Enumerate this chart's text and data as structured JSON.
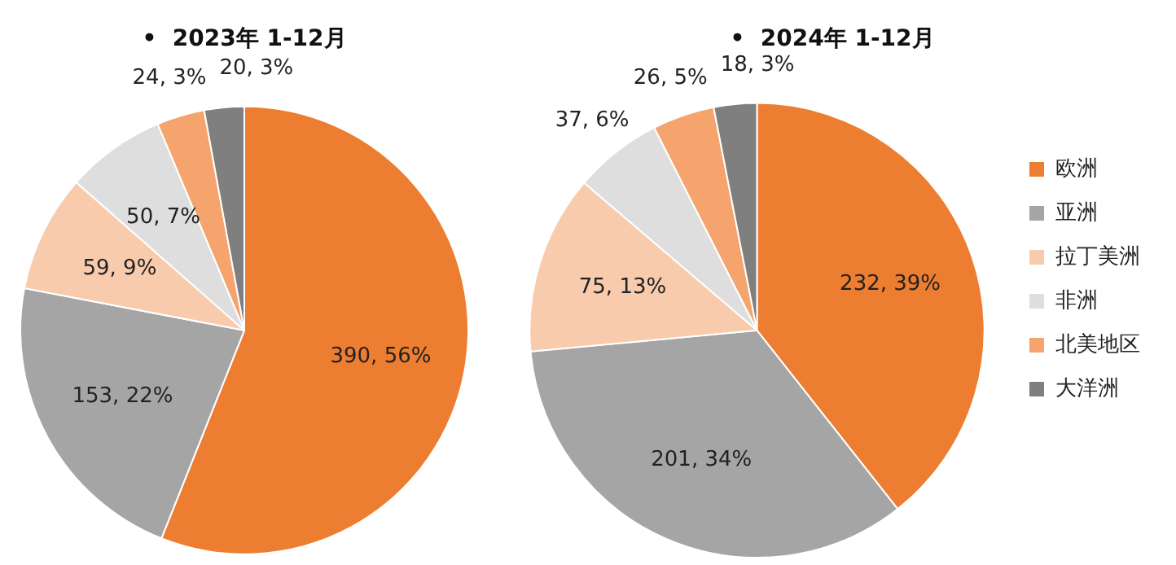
{
  "chart_data": [
    {
      "type": "pie",
      "title": "•  2023年 1-12月",
      "categories": [
        null,
        null,
        null,
        null,
        null,
        null
      ],
      "values": [
        390,
        153,
        59,
        50,
        24,
        20
      ],
      "colors": [
        "#ed7d31",
        "#a5a5a5",
        "#f8cbad",
        "#dedede",
        "#f4a46c",
        "#7f7f7f"
      ],
      "value_labels": [
        "390, 56%",
        "153, 22%",
        "59, 9%",
        "50, 7%",
        "24, 3%",
        "20, 3%"
      ],
      "legend": false
    },
    {
      "type": "pie",
      "title": "•  2024年 1-12月",
      "categories": [
        "欧洲",
        "亚洲",
        "拉丁美洲",
        "非洲",
        "北美地区",
        "大洋洲"
      ],
      "values": [
        232,
        201,
        75,
        37,
        26,
        18
      ],
      "colors": [
        "#ed7d31",
        "#a5a5a5",
        "#f8cbad",
        "#dedede",
        "#f4a46c",
        "#7f7f7f"
      ],
      "value_labels": [
        "232, 39%",
        "201, 34%",
        "75, 13%",
        "37, 6%",
        "26, 5%",
        "18, 3%"
      ],
      "legend": "right"
    }
  ]
}
